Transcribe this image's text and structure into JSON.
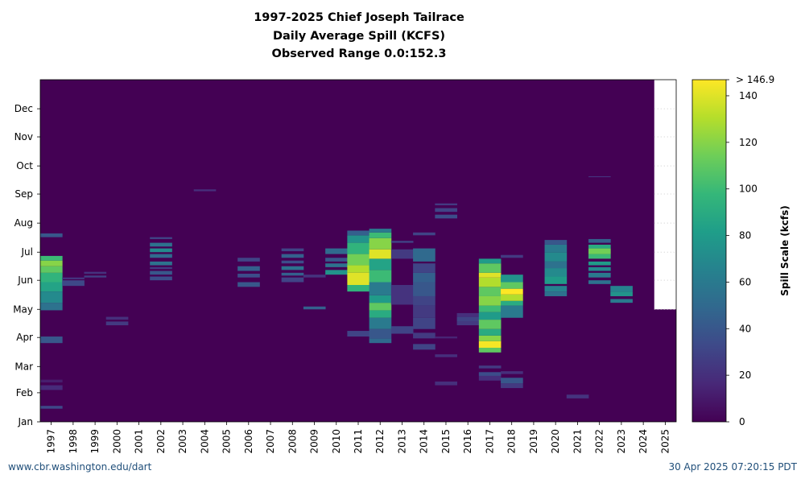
{
  "title": {
    "line1": "1997-2025 Chief Joseph Tailrace",
    "line2": "Daily Average Spill (KCFS)",
    "line3": "Observed Range 0.0:152.3"
  },
  "footer": {
    "url": "www.cbr.washington.edu/dart",
    "timestamp": "30 Apr 2025 07:20:15 PDT"
  },
  "colorbar": {
    "label": "Spill Scale (kcfs)",
    "max_label": "> 146.9",
    "ticks": [
      0,
      20,
      40,
      60,
      80,
      100,
      120,
      140
    ],
    "min": 0,
    "max": 146.9,
    "colormap": [
      "#440154",
      "#482878",
      "#3e4989",
      "#31688e",
      "#26828e",
      "#1f9e89",
      "#35b779",
      "#6ece58",
      "#b5de2b",
      "#fde725"
    ]
  },
  "chart_data": {
    "type": "heatmap",
    "x_categories": [
      "1997",
      "1998",
      "1999",
      "2000",
      "2001",
      "2002",
      "2003",
      "2004",
      "2005",
      "2006",
      "2007",
      "2008",
      "2009",
      "2010",
      "2011",
      "2012",
      "2013",
      "2014",
      "2015",
      "2016",
      "2017",
      "2018",
      "2019",
      "2020",
      "2021",
      "2022",
      "2023",
      "2024",
      "2025"
    ],
    "y_tick_labels": [
      "Jan",
      "Feb",
      "Mar",
      "Apr",
      "May",
      "Jun",
      "Jul",
      "Aug",
      "Sep",
      "Oct",
      "Nov",
      "Dec"
    ],
    "y_tick_days": [
      1,
      32,
      60,
      91,
      121,
      152,
      182,
      213,
      244,
      274,
      305,
      335
    ],
    "ylim": [
      1,
      366
    ],
    "value_range": [
      0.0,
      152.3
    ],
    "background_value": 0,
    "no_data": {
      "year": "2025",
      "from_day": 121,
      "to_day": 366
    },
    "bands": [
      {
        "year": "1997",
        "from": 15,
        "to": 18,
        "value": 32
      },
      {
        "year": "1997",
        "from": 35,
        "to": 40,
        "value": 18
      },
      {
        "year": "1997",
        "from": 43,
        "to": 46,
        "value": 12
      },
      {
        "year": "1997",
        "from": 85,
        "to": 92,
        "value": 40
      },
      {
        "year": "1997",
        "from": 120,
        "to": 128,
        "value": 55
      },
      {
        "year": "1997",
        "from": 128,
        "to": 140,
        "value": 70
      },
      {
        "year": "1997",
        "from": 140,
        "to": 150,
        "value": 85
      },
      {
        "year": "1997",
        "from": 150,
        "to": 160,
        "value": 95
      },
      {
        "year": "1997",
        "from": 160,
        "to": 167,
        "value": 110
      },
      {
        "year": "1997",
        "from": 167,
        "to": 173,
        "value": 120
      },
      {
        "year": "1997",
        "from": 173,
        "to": 178,
        "value": 100
      },
      {
        "year": "1997",
        "from": 198,
        "to": 202,
        "value": 40
      },
      {
        "year": "1998",
        "from": 146,
        "to": 152,
        "value": 32
      },
      {
        "year": "1998",
        "from": 153,
        "to": 155,
        "value": 22
      },
      {
        "year": "1999",
        "from": 155,
        "to": 157,
        "value": 28
      },
      {
        "year": "1999",
        "from": 159,
        "to": 161,
        "value": 22
      },
      {
        "year": "2000",
        "from": 104,
        "to": 108,
        "value": 25
      },
      {
        "year": "2000",
        "from": 110,
        "to": 113,
        "value": 20
      },
      {
        "year": "2002",
        "from": 152,
        "to": 156,
        "value": 35
      },
      {
        "year": "2002",
        "from": 158,
        "to": 162,
        "value": 40
      },
      {
        "year": "2002",
        "from": 164,
        "to": 166,
        "value": 25
      },
      {
        "year": "2002",
        "from": 168,
        "to": 172,
        "value": 55
      },
      {
        "year": "2002",
        "from": 176,
        "to": 180,
        "value": 50
      },
      {
        "year": "2002",
        "from": 182,
        "to": 186,
        "value": 70
      },
      {
        "year": "2002",
        "from": 188,
        "to": 192,
        "value": 55
      },
      {
        "year": "2002",
        "from": 196,
        "to": 198,
        "value": 30
      },
      {
        "year": "2004",
        "from": 247,
        "to": 249,
        "value": 20
      },
      {
        "year": "2006",
        "from": 145,
        "to": 150,
        "value": 40
      },
      {
        "year": "2006",
        "from": 155,
        "to": 159,
        "value": 35
      },
      {
        "year": "2006",
        "from": 162,
        "to": 167,
        "value": 45
      },
      {
        "year": "2006",
        "from": 172,
        "to": 176,
        "value": 30
      },
      {
        "year": "2008",
        "from": 150,
        "to": 155,
        "value": 30
      },
      {
        "year": "2008",
        "from": 157,
        "to": 160,
        "value": 45
      },
      {
        "year": "2008",
        "from": 163,
        "to": 167,
        "value": 55
      },
      {
        "year": "2008",
        "from": 170,
        "to": 173,
        "value": 35
      },
      {
        "year": "2008",
        "from": 176,
        "to": 180,
        "value": 45
      },
      {
        "year": "2008",
        "from": 183,
        "to": 186,
        "value": 30
      },
      {
        "year": "2009",
        "from": 121,
        "to": 124,
        "value": 45
      },
      {
        "year": "2009",
        "from": 155,
        "to": 158,
        "value": 22
      },
      {
        "year": "2010",
        "from": 158,
        "to": 163,
        "value": 75
      },
      {
        "year": "2010",
        "from": 166,
        "to": 170,
        "value": 55
      },
      {
        "year": "2010",
        "from": 172,
        "to": 176,
        "value": 40
      },
      {
        "year": "2010",
        "from": 180,
        "to": 186,
        "value": 50
      },
      {
        "year": "2011",
        "from": 92,
        "to": 98,
        "value": 30
      },
      {
        "year": "2011",
        "from": 140,
        "to": 147,
        "value": 95
      },
      {
        "year": "2011",
        "from": 147,
        "to": 160,
        "value": 140
      },
      {
        "year": "2011",
        "from": 160,
        "to": 168,
        "value": 130
      },
      {
        "year": "2011",
        "from": 168,
        "to": 180,
        "value": 115
      },
      {
        "year": "2011",
        "from": 180,
        "to": 192,
        "value": 95
      },
      {
        "year": "2011",
        "from": 192,
        "to": 200,
        "value": 75
      },
      {
        "year": "2011",
        "from": 200,
        "to": 205,
        "value": 45
      },
      {
        "year": "2012",
        "from": 85,
        "to": 90,
        "value": 50
      },
      {
        "year": "2012",
        "from": 90,
        "to": 100,
        "value": 40
      },
      {
        "year": "2012",
        "from": 100,
        "to": 112,
        "value": 60
      },
      {
        "year": "2012",
        "from": 112,
        "to": 120,
        "value": 90
      },
      {
        "year": "2012",
        "from": 120,
        "to": 128,
        "value": 110
      },
      {
        "year": "2012",
        "from": 128,
        "to": 136,
        "value": 80
      },
      {
        "year": "2012",
        "from": 136,
        "to": 150,
        "value": 60
      },
      {
        "year": "2012",
        "from": 150,
        "to": 163,
        "value": 100
      },
      {
        "year": "2012",
        "from": 163,
        "to": 175,
        "value": 85
      },
      {
        "year": "2012",
        "from": 175,
        "to": 185,
        "value": 140
      },
      {
        "year": "2012",
        "from": 185,
        "to": 197,
        "value": 120
      },
      {
        "year": "2012",
        "from": 197,
        "to": 203,
        "value": 100
      },
      {
        "year": "2012",
        "from": 203,
        "to": 207,
        "value": 60
      },
      {
        "year": "2013",
        "from": 95,
        "to": 103,
        "value": 30
      },
      {
        "year": "2013",
        "from": 126,
        "to": 147,
        "value": 22
      },
      {
        "year": "2013",
        "from": 175,
        "to": 185,
        "value": 25
      },
      {
        "year": "2013",
        "from": 192,
        "to": 194,
        "value": 30
      },
      {
        "year": "2014",
        "from": 78,
        "to": 84,
        "value": 30
      },
      {
        "year": "2014",
        "from": 90,
        "to": 96,
        "value": 25
      },
      {
        "year": "2014",
        "from": 100,
        "to": 112,
        "value": 30
      },
      {
        "year": "2014",
        "from": 112,
        "to": 125,
        "value": 25
      },
      {
        "year": "2014",
        "from": 125,
        "to": 135,
        "value": 30
      },
      {
        "year": "2014",
        "from": 135,
        "to": 150,
        "value": 40
      },
      {
        "year": "2014",
        "from": 150,
        "to": 160,
        "value": 45
      },
      {
        "year": "2014",
        "from": 160,
        "to": 170,
        "value": 30
      },
      {
        "year": "2014",
        "from": 172,
        "to": 186,
        "value": 50
      },
      {
        "year": "2014",
        "from": 200,
        "to": 203,
        "value": 30
      },
      {
        "year": "2015",
        "from": 40,
        "to": 44,
        "value": 20
      },
      {
        "year": "2015",
        "from": 70,
        "to": 73,
        "value": 20
      },
      {
        "year": "2015",
        "from": 90,
        "to": 92,
        "value": 15
      },
      {
        "year": "2015",
        "from": 218,
        "to": 222,
        "value": 35
      },
      {
        "year": "2015",
        "from": 225,
        "to": 229,
        "value": 30
      },
      {
        "year": "2015",
        "from": 232,
        "to": 234,
        "value": 25
      },
      {
        "year": "2016",
        "from": 104,
        "to": 108,
        "value": 25
      },
      {
        "year": "2016",
        "from": 108,
        "to": 113,
        "value": 30
      },
      {
        "year": "2016",
        "from": 113,
        "to": 117,
        "value": 20
      },
      {
        "year": "2017",
        "from": 45,
        "to": 50,
        "value": 20
      },
      {
        "year": "2017",
        "from": 50,
        "to": 54,
        "value": 35
      },
      {
        "year": "2017",
        "from": 58,
        "to": 61,
        "value": 25
      },
      {
        "year": "2017",
        "from": 75,
        "to": 80,
        "value": 110
      },
      {
        "year": "2017",
        "from": 80,
        "to": 87,
        "value": 145
      },
      {
        "year": "2017",
        "from": 87,
        "to": 93,
        "value": 120
      },
      {
        "year": "2017",
        "from": 93,
        "to": 100,
        "value": 90
      },
      {
        "year": "2017",
        "from": 100,
        "to": 110,
        "value": 110
      },
      {
        "year": "2017",
        "from": 110,
        "to": 118,
        "value": 80
      },
      {
        "year": "2017",
        "from": 118,
        "to": 125,
        "value": 100
      },
      {
        "year": "2017",
        "from": 125,
        "to": 135,
        "value": 120
      },
      {
        "year": "2017",
        "from": 135,
        "to": 145,
        "value": 110
      },
      {
        "year": "2017",
        "from": 145,
        "to": 155,
        "value": 130
      },
      {
        "year": "2017",
        "from": 155,
        "to": 160,
        "value": 140
      },
      {
        "year": "2017",
        "from": 160,
        "to": 170,
        "value": 110
      },
      {
        "year": "2017",
        "from": 170,
        "to": 175,
        "value": 80
      },
      {
        "year": "2018",
        "from": 37,
        "to": 42,
        "value": 25
      },
      {
        "year": "2018",
        "from": 42,
        "to": 48,
        "value": 40
      },
      {
        "year": "2018",
        "from": 52,
        "to": 55,
        "value": 20
      },
      {
        "year": "2018",
        "from": 112,
        "to": 125,
        "value": 60
      },
      {
        "year": "2018",
        "from": 125,
        "to": 130,
        "value": 90
      },
      {
        "year": "2018",
        "from": 130,
        "to": 137,
        "value": 130
      },
      {
        "year": "2018",
        "from": 137,
        "to": 143,
        "value": 150
      },
      {
        "year": "2018",
        "from": 143,
        "to": 150,
        "value": 110
      },
      {
        "year": "2018",
        "from": 150,
        "to": 158,
        "value": 75
      },
      {
        "year": "2018",
        "from": 176,
        "to": 179,
        "value": 25
      },
      {
        "year": "2020",
        "from": 135,
        "to": 140,
        "value": 55
      },
      {
        "year": "2020",
        "from": 140,
        "to": 146,
        "value": 65
      },
      {
        "year": "2020",
        "from": 148,
        "to": 156,
        "value": 80
      },
      {
        "year": "2020",
        "from": 156,
        "to": 165,
        "value": 70
      },
      {
        "year": "2020",
        "from": 165,
        "to": 172,
        "value": 55
      },
      {
        "year": "2020",
        "from": 172,
        "to": 182,
        "value": 70
      },
      {
        "year": "2020",
        "from": 182,
        "to": 190,
        "value": 60
      },
      {
        "year": "2020",
        "from": 190,
        "to": 195,
        "value": 40
      },
      {
        "year": "2021",
        "from": 26,
        "to": 30,
        "value": 22
      },
      {
        "year": "2022",
        "from": 148,
        "to": 152,
        "value": 55
      },
      {
        "year": "2022",
        "from": 155,
        "to": 160,
        "value": 60
      },
      {
        "year": "2022",
        "from": 162,
        "to": 166,
        "value": 70
      },
      {
        "year": "2022",
        "from": 168,
        "to": 172,
        "value": 80
      },
      {
        "year": "2022",
        "from": 175,
        "to": 180,
        "value": 100
      },
      {
        "year": "2022",
        "from": 180,
        "to": 186,
        "value": 115
      },
      {
        "year": "2022",
        "from": 186,
        "to": 190,
        "value": 90
      },
      {
        "year": "2022",
        "from": 192,
        "to": 196,
        "value": 45
      },
      {
        "year": "2022",
        "from": 262,
        "to": 263,
        "value": 22
      },
      {
        "year": "2023",
        "from": 128,
        "to": 132,
        "value": 60
      },
      {
        "year": "2023",
        "from": 135,
        "to": 140,
        "value": 75
      },
      {
        "year": "2023",
        "from": 140,
        "to": 146,
        "value": 65
      }
    ]
  }
}
